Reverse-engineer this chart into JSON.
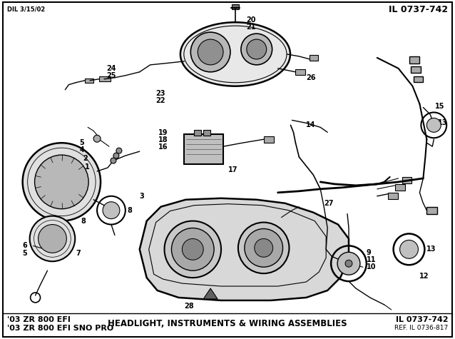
{
  "title_top_left": "DIL 3/15/02",
  "title_top_right": "IL 0737-742",
  "bottom_left_line1": "'03 ZR 800 EFI",
  "bottom_left_line2": "'03 ZR 800 EFI SNO PRO",
  "bottom_center": "HEADLIGHT, INSTRUMENTS & WIRING ASSEMBLIES",
  "bottom_right_line1": "IL 0737-742",
  "bottom_right_line2": "REF. IL 0736-817",
  "bg_color": "#ffffff",
  "fig_width": 6.38,
  "fig_height": 4.75,
  "dpi": 100
}
